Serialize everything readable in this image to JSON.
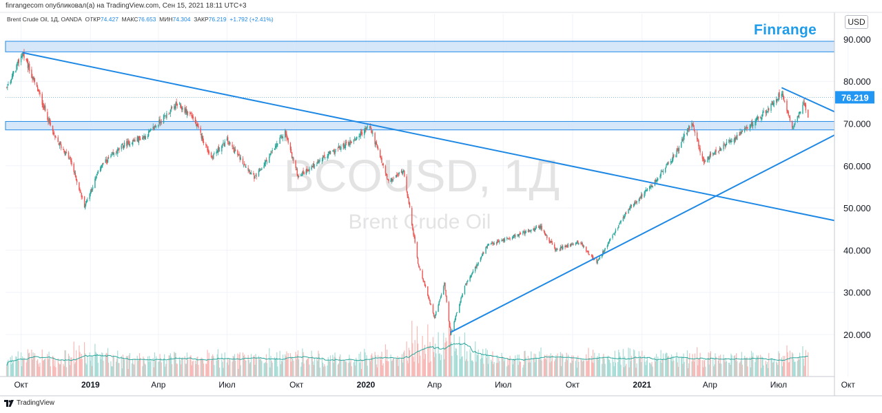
{
  "header": {
    "publisher_text": "finrangecom опубликовал(а) на TradingView.com, Сен 15, 2021 18:11 UTC+3"
  },
  "symbol_line": {
    "name": "Brent Crude Oil, 1Д, OANDA",
    "open_label": "ОТКР",
    "open_value": "74.427",
    "high_label": "МАКС",
    "high_value": "76.653",
    "low_label": "МИН",
    "low_value": "74.304",
    "close_label": "ЗАКР",
    "close_value": "76.219",
    "change_value": "+1.792 (+2.41%)"
  },
  "brand": "Finrange",
  "currency_button": "USD",
  "footer": {
    "logo_text": "TradingView"
  },
  "watermark": {
    "symbol": "BCOUSD, 1Д",
    "name": "Brent Crude Oil"
  },
  "colors": {
    "up": "#26a69a",
    "down": "#ef5350",
    "trend": "#1e88e5",
    "zone_fill": "#cfe3f9",
    "volume_ma": "#26a69a",
    "price_label_bg": "#2196f3"
  },
  "chart_data": {
    "type": "line",
    "title": "",
    "xlabel": "",
    "ylabel": "",
    "ylim": [
      13,
      96
    ],
    "x_tick_labels": [
      "Окт",
      "2019",
      "Апр",
      "Июл",
      "Окт",
      "2020",
      "Апр",
      "Июл",
      "Окт",
      "2021",
      "Апр",
      "Июл",
      "Окт"
    ],
    "y_tick_labels": [
      "90.000",
      "80.000",
      "70.000",
      "60.000",
      "50.000",
      "40.000",
      "30.000",
      "20.000"
    ],
    "y_ticks": [
      90,
      80,
      70,
      60,
      50,
      40,
      30,
      20
    ],
    "last_price_label": "76.219",
    "last_price": 76.219,
    "series": [
      {
        "values_date_start": "2018-08-01",
        "keypoints": [
          [
            "2018-08-01",
            72
          ],
          [
            "2018-08-20",
            71.5
          ],
          [
            "2018-09-10",
            77.5
          ],
          [
            "2018-10-03",
            86.7
          ],
          [
            "2018-10-25",
            77
          ],
          [
            "2018-11-15",
            66.5
          ],
          [
            "2018-12-05",
            61.5
          ],
          [
            "2018-12-24",
            50.5
          ],
          [
            "2019-01-15",
            60
          ],
          [
            "2019-02-15",
            65
          ],
          [
            "2019-03-15",
            67
          ],
          [
            "2019-04-25",
            74.5
          ],
          [
            "2019-05-15",
            72
          ],
          [
            "2019-06-10",
            62
          ],
          [
            "2019-07-01",
            66
          ],
          [
            "2019-08-07",
            57
          ],
          [
            "2019-09-16",
            68
          ],
          [
            "2019-10-03",
            57.5
          ],
          [
            "2019-11-15",
            63
          ],
          [
            "2019-12-15",
            66
          ],
          [
            "2020-01-06",
            69.5
          ],
          [
            "2020-01-31",
            56
          ],
          [
            "2020-02-20",
            59
          ],
          [
            "2020-03-10",
            37
          ],
          [
            "2020-04-01",
            24
          ],
          [
            "2020-04-14",
            32
          ],
          [
            "2020-04-22",
            20
          ],
          [
            "2020-05-10",
            31
          ],
          [
            "2020-06-10",
            41
          ],
          [
            "2020-07-10",
            43
          ],
          [
            "2020-08-20",
            45.5
          ],
          [
            "2020-09-08",
            40
          ],
          [
            "2020-10-10",
            42
          ],
          [
            "2020-11-02",
            37
          ],
          [
            "2020-12-15",
            50
          ],
          [
            "2021-01-15",
            55.5
          ],
          [
            "2021-02-15",
            63
          ],
          [
            "2021-03-08",
            70.5
          ],
          [
            "2021-03-23",
            61
          ],
          [
            "2021-05-15",
            68
          ],
          [
            "2021-06-15",
            73
          ],
          [
            "2021-07-05",
            77.5
          ],
          [
            "2021-07-20",
            69
          ],
          [
            "2021-08-03",
            75
          ],
          [
            "2021-08-20",
            65.5
          ],
          [
            "2021-09-03",
            73
          ],
          [
            "2021-09-10",
            72.5
          ],
          [
            "2021-09-15",
            76.219
          ]
        ]
      }
    ],
    "zones": [
      {
        "from": 87,
        "to": 89.5
      },
      {
        "from": 68.5,
        "to": 70.5
      }
    ],
    "trendlines": [
      {
        "from": [
          "2018-10-03",
          86.8
        ],
        "to": [
          "2021-11-12",
          44.8
        ]
      },
      {
        "from": [
          "2020-04-22",
          20.5
        ],
        "to": [
          "2021-10-15",
          70.2
        ]
      },
      {
        "from": [
          "2021-07-05",
          78.5
        ],
        "to": [
          "2021-10-15",
          70.2
        ]
      }
    ]
  }
}
